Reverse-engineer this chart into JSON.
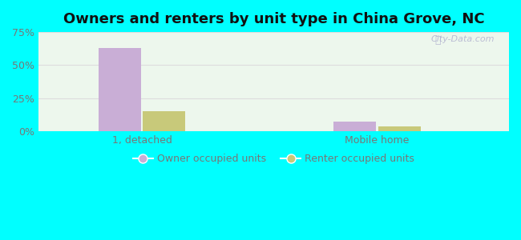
{
  "title": "Owners and renters by unit type in China Grove, NC",
  "categories": [
    "1, detached",
    "Mobile home"
  ],
  "owner_values": [
    63.0,
    7.5
  ],
  "renter_values": [
    15.0,
    4.0
  ],
  "owner_color": "#c9aed6",
  "renter_color": "#c8c97a",
  "ylim": [
    0,
    75
  ],
  "yticks": [
    0,
    25,
    50,
    75
  ],
  "ytick_labels": [
    "0%",
    "25%",
    "50%",
    "75%"
  ],
  "group_centers": [
    0.22,
    0.72
  ],
  "bar_width": 0.09,
  "bar_gap": 0.005,
  "xlim": [
    0.0,
    1.0
  ],
  "outer_bg": "#00ffff",
  "plot_bg": "#edf7ed",
  "legend_labels": [
    "Owner occupied units",
    "Renter occupied units"
  ],
  "watermark": "City-Data.com",
  "title_fontsize": 13,
  "tick_fontsize": 9,
  "legend_fontsize": 9,
  "grid_color": "#dddddd",
  "tick_color": "#777777"
}
